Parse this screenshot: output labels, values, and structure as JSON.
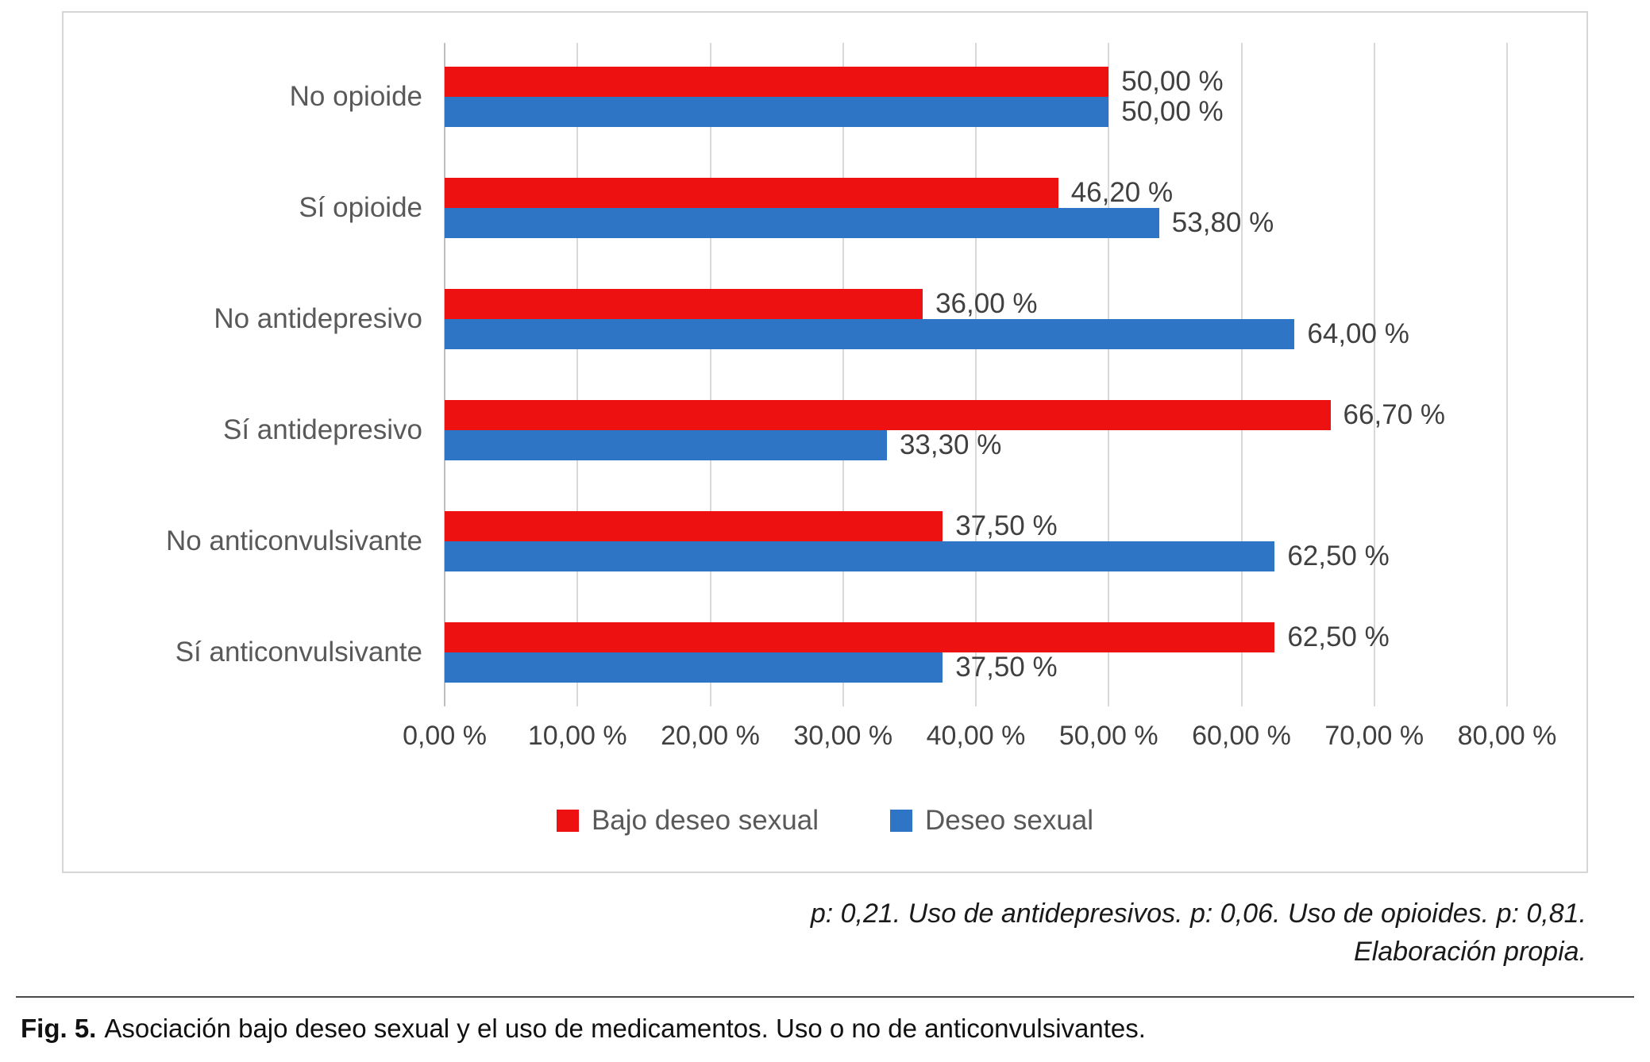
{
  "chart_data": {
    "type": "bar",
    "orientation": "horizontal",
    "categories": [
      "No opioide",
      "Sí opioide",
      "No antidepresivo",
      "Sí antidepresivo",
      "No anticonvulsivante",
      "Sí anticonvulsivante"
    ],
    "series": [
      {
        "name": "Bajo deseo sexual",
        "color": "#ee1111",
        "values": [
          50.0,
          46.2,
          36.0,
          66.7,
          37.5,
          62.5
        ],
        "labels": [
          "50,00 %",
          "46,20 %",
          "36,00 %",
          "66,70 %",
          "37,50 %",
          "62,50 %"
        ]
      },
      {
        "name": "Deseo sexual",
        "color": "#2e75c6",
        "values": [
          50.0,
          53.8,
          64.0,
          33.3,
          62.5,
          37.5
        ],
        "labels": [
          "50,00 %",
          "53,80 %",
          "64,00 %",
          "33,30 %",
          "62,50 %",
          "37,50 %"
        ]
      }
    ],
    "xlim": [
      0,
      80
    ],
    "x_ticks": [
      "0,00 %",
      "10,00 %",
      "20,00 %",
      "30,00 %",
      "40,00 %",
      "50,00 %",
      "60,00 %",
      "70,00 %",
      "80,00 %"
    ],
    "grid": true,
    "gridline_color": "#d9d9d9",
    "legend_position": "bottom"
  },
  "notes": {
    "line1": "p: 0,21. Uso de antidepresivos. p: 0,06. Uso de opioides. p: 0,81.",
    "line2": "Elaboración propia."
  },
  "caption": {
    "label": "Fig. 5.",
    "text": "Asociación bajo deseo sexual y el uso de medicamentos. Uso o no de anticonvulsivantes."
  }
}
